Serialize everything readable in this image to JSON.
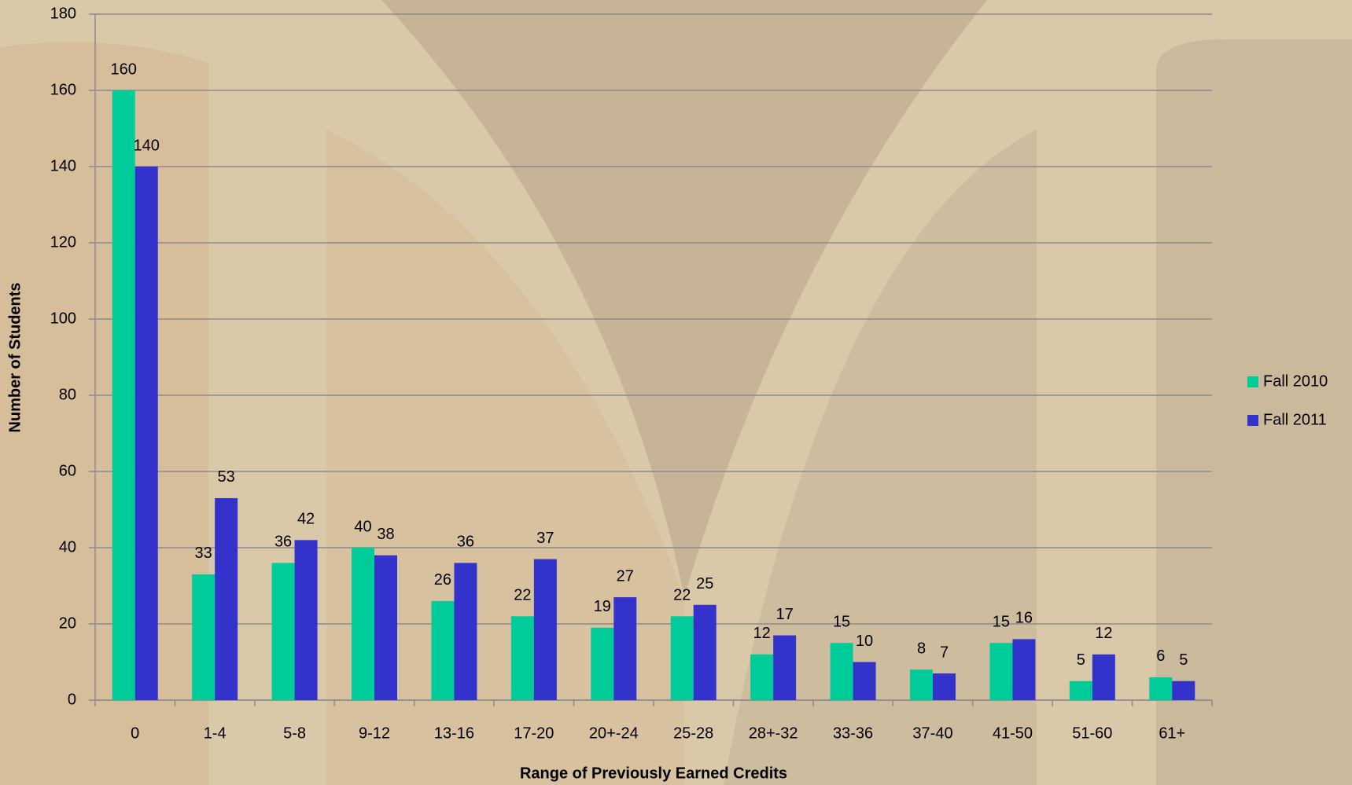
{
  "chart_data": {
    "type": "bar",
    "x_label": "Range of Previously Earned Credits",
    "y_label": "Number of Students",
    "categories": [
      "0",
      "1-4",
      "5-8",
      "9-12",
      "13-16",
      "17-20",
      "20+-24",
      "25-28",
      "28+-32",
      "33-36",
      "37-40",
      "41-50",
      "51-60",
      "61+"
    ],
    "series": [
      {
        "name": "Fall 2010",
        "color": "#00cc99",
        "values": [
          160,
          33,
          36,
          40,
          26,
          22,
          19,
          22,
          12,
          15,
          8,
          15,
          5,
          6
        ]
      },
      {
        "name": "Fall 2011",
        "color": "#3333cc",
        "values": [
          140,
          53,
          42,
          38,
          36,
          37,
          27,
          25,
          17,
          10,
          7,
          16,
          12,
          5
        ]
      }
    ],
    "ylim": [
      0,
      180
    ],
    "yticks": [
      0,
      20,
      40,
      60,
      80,
      100,
      120,
      140,
      160,
      180
    ],
    "grid": true,
    "legend": "right"
  }
}
